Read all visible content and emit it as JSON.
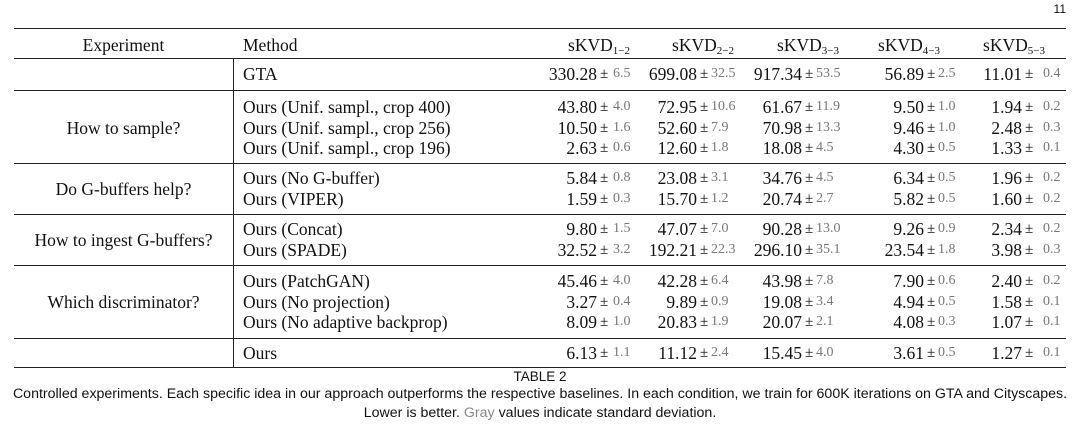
{
  "page_number": "11",
  "table": {
    "header": {
      "experiment": "Experiment",
      "method": "Method",
      "columns": [
        {
          "base": "sKVD",
          "sub": "1−2"
        },
        {
          "base": "sKVD",
          "sub": "2−2"
        },
        {
          "base": "sKVD",
          "sub": "3−3"
        },
        {
          "base": "sKVD",
          "sub": "4−3"
        },
        {
          "base": "sKVD",
          "sub": "5−3"
        }
      ]
    },
    "groups": [
      {
        "experiment": "",
        "rows": [
          {
            "method": "GTA",
            "vals": [
              [
                "330.28",
                "6.5"
              ],
              [
                "699.08",
                "32.5"
              ],
              [
                "917.34",
                "53.5"
              ],
              [
                "56.89",
                "2.5"
              ],
              [
                "11.01",
                "0.4"
              ]
            ]
          }
        ]
      },
      {
        "experiment": "How to sample?",
        "rows": [
          {
            "method": "Ours (Unif. sampl., crop 400)",
            "vals": [
              [
                "43.80",
                "4.0"
              ],
              [
                "72.95",
                "10.6"
              ],
              [
                "61.67",
                "11.9"
              ],
              [
                "9.50",
                "1.0"
              ],
              [
                "1.94",
                "0.2"
              ]
            ]
          },
          {
            "method": "Ours (Unif. sampl., crop 256)",
            "vals": [
              [
                "10.50",
                "1.6"
              ],
              [
                "52.60",
                "7.9"
              ],
              [
                "70.98",
                "13.3"
              ],
              [
                "9.46",
                "1.0"
              ],
              [
                "2.48",
                "0.3"
              ]
            ]
          },
          {
            "method": "Ours (Unif. sampl., crop 196)",
            "vals": [
              [
                "2.63",
                "0.6"
              ],
              [
                "12.60",
                "1.8"
              ],
              [
                "18.08",
                "4.5"
              ],
              [
                "4.30",
                "0.5"
              ],
              [
                "1.33",
                "0.1"
              ]
            ]
          }
        ]
      },
      {
        "experiment": "Do G-buffers help?",
        "rows": [
          {
            "method": "Ours (No G-buffer)",
            "vals": [
              [
                "5.84",
                "0.8"
              ],
              [
                "23.08",
                "3.1"
              ],
              [
                "34.76",
                "4.5"
              ],
              [
                "6.34",
                "0.5"
              ],
              [
                "1.96",
                "0.2"
              ]
            ]
          },
          {
            "method": "Ours (VIPER)",
            "vals": [
              [
                "1.59",
                "0.3"
              ],
              [
                "15.70",
                "1.2"
              ],
              [
                "20.74",
                "2.7"
              ],
              [
                "5.82",
                "0.5"
              ],
              [
                "1.60",
                "0.2"
              ]
            ]
          }
        ]
      },
      {
        "experiment": "How to ingest G-buffers?",
        "rows": [
          {
            "method": "Ours (Concat)",
            "vals": [
              [
                "9.80",
                "1.5"
              ],
              [
                "47.07",
                "7.0"
              ],
              [
                "90.28",
                "13.0"
              ],
              [
                "9.26",
                "0.9"
              ],
              [
                "2.34",
                "0.2"
              ]
            ]
          },
          {
            "method": "Ours (SPADE)",
            "vals": [
              [
                "32.52",
                "3.2"
              ],
              [
                "192.21",
                "22.3"
              ],
              [
                "296.10",
                "35.1"
              ],
              [
                "23.54",
                "1.8"
              ],
              [
                "3.98",
                "0.3"
              ]
            ]
          }
        ]
      },
      {
        "experiment": "Which discriminator?",
        "rows": [
          {
            "method": "Ours (PatchGAN)",
            "vals": [
              [
                "45.46",
                "4.0"
              ],
              [
                "42.28",
                "6.4"
              ],
              [
                "43.98",
                "7.8"
              ],
              [
                "7.90",
                "0.6"
              ],
              [
                "2.40",
                "0.2"
              ]
            ]
          },
          {
            "method": "Ours (No projection)",
            "vals": [
              [
                "3.27",
                "0.4"
              ],
              [
                "9.89",
                "0.9"
              ],
              [
                "19.08",
                "3.4"
              ],
              [
                "4.94",
                "0.5"
              ],
              [
                "1.58",
                "0.1"
              ]
            ]
          },
          {
            "method": "Ours (No adaptive backprop)",
            "vals": [
              [
                "8.09",
                "1.0"
              ],
              [
                "20.83",
                "1.9"
              ],
              [
                "20.07",
                "2.1"
              ],
              [
                "4.08",
                "0.3"
              ],
              [
                "1.07",
                "0.1"
              ]
            ]
          }
        ]
      },
      {
        "experiment": "",
        "rows": [
          {
            "method": "Ours",
            "vals": [
              [
                "6.13",
                "1.1"
              ],
              [
                "11.12",
                "2.4"
              ],
              [
                "15.45",
                "4.0"
              ],
              [
                "3.61",
                "0.5"
              ],
              [
                "1.27",
                "0.1"
              ]
            ]
          }
        ]
      }
    ],
    "pm_symbol": "±"
  },
  "caption": {
    "title": "TABLE 2",
    "text_before_gray": "Controlled experiments. Each specific idea in our approach outperforms the respective baselines. In each condition, we train for 600K iterations on GTA and Cityscapes. Lower is better. ",
    "gray_word": "Gray",
    "text_after_gray": " values indicate standard deviation.",
    "gray_color": "#888888"
  }
}
